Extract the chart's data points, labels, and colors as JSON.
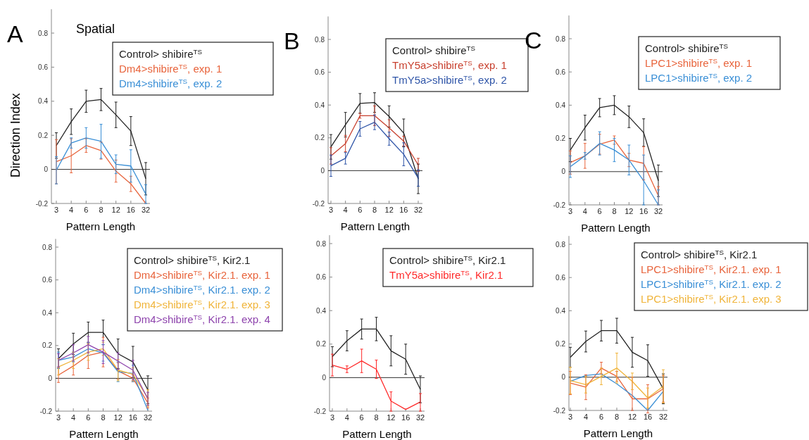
{
  "chart_data": [
    {
      "type": "line",
      "title": "Spatial",
      "xlabel": "Pattern Length",
      "ylabel": "Direction Index",
      "annotations": [
        "A"
      ],
      "categories": [
        "3",
        "4",
        "6",
        "8",
        "12",
        "16",
        "32"
      ],
      "ylim": [
        -0.2,
        0.94
      ],
      "yticks": [
        -0.2,
        0,
        0.2,
        0.4,
        0.6,
        0.8
      ],
      "legend": "top right",
      "ref_lines": [
        {
          "axis": "y",
          "value": 0,
          "color": "#333333"
        }
      ],
      "series": [
        {
          "name": "Control> shibire$^{TS}$",
          "color": "#222222",
          "values": [
            0.14,
            0.28,
            0.4,
            0.41,
            0.32,
            0.225,
            -0.055
          ],
          "errors": [
            0.075,
            0.075,
            0.065,
            0.065,
            0.075,
            0.085,
            0.095
          ]
        },
        {
          "name": "Dm4>shibire$^{TS}$, exp. 1",
          "color": "#e8643c",
          "values": [
            0.045,
            0.08,
            0.14,
            0.11,
            -0.01,
            -0.085,
            -0.2
          ],
          "errors": [
            0.13,
            0.1,
            0.04,
            0.05,
            0.065,
            0.045,
            null
          ]
        },
        {
          "name": "Dm4>shibire$^{TS}$, exp. 2",
          "color": "#3a8fd6",
          "values": [
            -0.005,
            0.155,
            0.185,
            0.165,
            0.03,
            0.02,
            -0.145
          ],
          "errors": [
            0.08,
            0.03,
            0.06,
            0.1,
            0.055,
            0.095,
            0.055
          ]
        }
      ]
    },
    {
      "type": "line",
      "xlabel": "Pattern Length",
      "annotations": [
        "B"
      ],
      "categories": [
        "3",
        "4",
        "6",
        "8",
        "12",
        "16",
        "32"
      ],
      "ylim": [
        -0.2,
        0.94
      ],
      "yticks": [
        -0.2,
        0,
        0.2,
        0.4,
        0.6,
        0.8
      ],
      "legend": "top right",
      "ref_lines": [
        {
          "axis": "y",
          "value": 0,
          "color": "#333333"
        }
      ],
      "series": [
        {
          "name": "Control> shibire$^{TS}$",
          "color": "#222222",
          "values": [
            0.145,
            0.28,
            0.41,
            0.415,
            0.33,
            0.23,
            -0.05
          ],
          "errors": [
            0.075,
            0.075,
            0.06,
            0.06,
            0.065,
            0.085,
            0.09
          ]
        },
        {
          "name": "TmY5a>shibire$^{TS}$, exp. 1",
          "color": "#c8402e",
          "values": [
            0.09,
            0.165,
            0.335,
            0.335,
            0.26,
            0.18,
            0.035
          ],
          "errors": [
            0.05,
            0.05,
            0.015,
            0.06,
            0.05,
            0.03,
            0.04
          ]
        },
        {
          "name": "TmY5a>shibire$^{TS}$, exp. 2",
          "color": "#2f55a8",
          "values": [
            0.03,
            0.075,
            0.255,
            0.295,
            0.195,
            0.1,
            -0.045
          ],
          "errors": [
            0.065,
            0.035,
            0.045,
            0.045,
            0.04,
            0.07,
            0.05
          ]
        }
      ]
    },
    {
      "type": "line",
      "xlabel": "Pattern Length",
      "annotations": [
        "C"
      ],
      "categories": [
        "3",
        "4",
        "6",
        "8",
        "12",
        "16",
        "32"
      ],
      "ylim": [
        -0.2,
        0.94
      ],
      "yticks": [
        -0.2,
        0,
        0.2,
        0.4,
        0.6,
        0.8
      ],
      "legend": "top right",
      "ref_lines": [
        {
          "axis": "y",
          "value": 0,
          "color": "#333333"
        }
      ],
      "series": [
        {
          "name": "Control> shibire$^{TS}$",
          "color": "#222222",
          "values": [
            0.13,
            0.265,
            0.385,
            0.4,
            0.33,
            0.235,
            -0.055
          ],
          "errors": [
            0.07,
            0.075,
            0.055,
            0.057,
            0.065,
            0.083,
            0.095
          ]
        },
        {
          "name": "LPC1>shibire$^{TS}$, exp. 1",
          "color": "#e8643c",
          "values": [
            0.055,
            0.095,
            0.165,
            0.19,
            0.07,
            0.05,
            -0.145
          ],
          "errors": [
            0.07,
            0.075,
            0.06,
            0.025,
            0.04,
            0.1,
            0.055
          ]
        },
        {
          "name": "LPC1>shibire$^{TS}$, exp. 2",
          "color": "#3a8fd6",
          "values": [
            0.03,
            0.095,
            0.17,
            0.13,
            0.07,
            -0.055,
            -0.2
          ],
          "errors": [
            0.065,
            0.02,
            0.07,
            0.07,
            0.09,
            [
              -0.2,
              0.1
            ],
            [
              -0.2,
              -0.11
            ]
          ]
        }
      ]
    },
    {
      "type": "line",
      "xlabel": "Pattern Length",
      "categories": [
        "3",
        "4",
        "6",
        "8",
        "12",
        "16",
        "32"
      ],
      "ylim": [
        -0.2,
        0.85
      ],
      "yticks": [
        -0.2,
        0,
        0.2,
        0.4,
        0.6,
        0.8
      ],
      "legend": "top right",
      "ref_lines": [
        {
          "axis": "y",
          "value": 0,
          "color": "#333333"
        }
      ],
      "series": [
        {
          "name": "Control> shibire$^{TS}$, Kir2.1",
          "color": "#222222",
          "values": [
            0.12,
            0.21,
            0.28,
            0.28,
            0.15,
            0.1,
            -0.07
          ],
          "errors": [
            0.06,
            0.065,
            0.063,
            0.075,
            0.09,
            0.095,
            0.085
          ]
        },
        {
          "name": "Dm4>shibire$^{TS}$, Kir2.1. exp. 1",
          "color": "#e8643c",
          "values": [
            0.02,
            0.075,
            0.14,
            0.16,
            0.045,
            0,
            -0.15
          ],
          "errors": [
            0.045,
            0.055,
            0.08,
            0.09,
            0.05,
            0.02,
            0.03
          ]
        },
        {
          "name": "Dm4>shibire$^{TS}$, Kir2.1. exp. 2",
          "color": "#3a8fd6",
          "values": [
            0.11,
            0.13,
            0.18,
            0.155,
            0.04,
            0.03,
            -0.195
          ],
          "errors": [
            0.05,
            0.03,
            0.04,
            0.05,
            0.06,
            0.05,
            null
          ]
        },
        {
          "name": "Dm4>shibire$^{TS}$, Kir2.1. exp. 3",
          "color": "#f0b43a",
          "values": [
            0.07,
            0.11,
            0.16,
            0.18,
            0.05,
            0.025,
            -0.12
          ],
          "errors": [
            0.05,
            0.05,
            0.05,
            0.04,
            0.065,
            0.04,
            0.05
          ]
        },
        {
          "name": "Dm4>shibire$^{TS}$, Kir2.1. exp. 4",
          "color": "#8e44ad",
          "values": [
            0.11,
            0.155,
            0.205,
            0.16,
            0.105,
            0.05,
            -0.125
          ],
          "errors": [
            0.04,
            0.05,
            0.05,
            0.07,
            0.05,
            0.06,
            0.04
          ]
        }
      ]
    },
    {
      "type": "line",
      "xlabel": "Pattern Length",
      "categories": [
        "3",
        "4",
        "6",
        "8",
        "12",
        "16",
        "32"
      ],
      "ylim": [
        -0.2,
        0.85
      ],
      "yticks": [
        -0.2,
        0,
        0.2,
        0.4,
        0.6,
        0.8
      ],
      "legend": "top right",
      "ref_lines": [
        {
          "axis": "y",
          "value": 0,
          "color": "#333333"
        }
      ],
      "series": [
        {
          "name": "Control> shibire$^{TS}$, Kir2.1",
          "color": "#222222",
          "values": [
            0.125,
            0.22,
            0.29,
            0.29,
            0.16,
            0.11,
            -0.07
          ],
          "errors": [
            0.06,
            0.06,
            0.06,
            0.07,
            0.09,
            0.09,
            0.08
          ]
        },
        {
          "name": "TmY5a>shibire$^{TS}$, Kir2.1",
          "color": "#ff2a2a",
          "values": [
            0.075,
            0.05,
            0.1,
            0.05,
            -0.14,
            -0.19,
            -0.145
          ],
          "errors": [
            0.065,
            0.02,
            0.07,
            0.055,
            [
              -0.2,
              -0.085
            ],
            null,
            [
              -0.2,
              -0.095
            ]
          ]
        }
      ]
    },
    {
      "type": "line",
      "xlabel": "Pattern Length",
      "categories": [
        "3",
        "4",
        "6",
        "8",
        "12",
        "16",
        "32"
      ],
      "ylim": [
        -0.2,
        0.85
      ],
      "yticks": [
        -0.2,
        0,
        0.2,
        0.4,
        0.6,
        0.8
      ],
      "legend": "top right",
      "ref_lines": [
        {
          "axis": "y",
          "value": 0,
          "color": "#333333"
        }
      ],
      "series": [
        {
          "name": "Control> shibire$^{TS}$, Kir2.1",
          "color": "#222222",
          "values": [
            0.12,
            0.215,
            0.28,
            0.28,
            0.15,
            0.1,
            -0.07
          ],
          "errors": [
            0.06,
            0.063,
            0.062,
            0.075,
            0.09,
            0.095,
            0.09
          ]
        },
        {
          "name": "LPC1>shibire$^{TS}$, Kir2.1. exp. 1",
          "color": "#e8643c",
          "values": [
            -0.035,
            -0.06,
            0.055,
            0.005,
            -0.13,
            -0.13,
            -0.07
          ],
          "errors": [
            0.07,
            0.075,
            0.035,
            0.03,
            [
              -0.2,
              0
            ],
            0.085,
            0.08
          ]
        },
        {
          "name": "LPC1>shibire$^{TS}$, Kir2.1. exp. 2",
          "color": "#3a8fd6",
          "values": [
            -0.025,
            0.01,
            0.02,
            -0.04,
            -0.11,
            -0.2,
            -0.085
          ]
        },
        {
          "name": "LPC1>shibire$^{TS}$, Kir2.1. exp. 3",
          "color": "#f0b43a",
          "values": [
            -0.02,
            -0.045,
            0.005,
            0.055,
            -0.025,
            -0.125,
            -0.055
          ],
          "errors": [
            0.08,
            0.05,
            0.05,
            0.09,
            0.05,
            0.06,
            0.1
          ]
        }
      ]
    }
  ]
}
